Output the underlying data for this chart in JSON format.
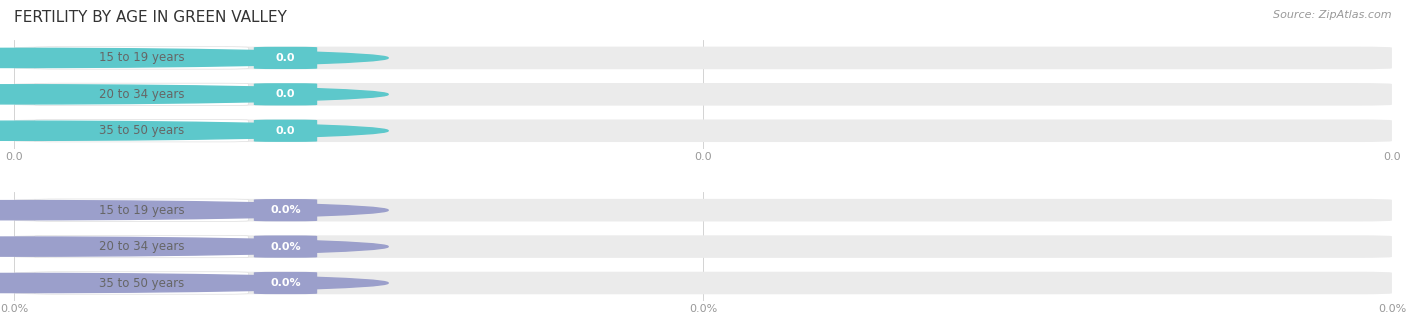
{
  "title": "FERTILITY BY AGE IN GREEN VALLEY",
  "source": "Source: ZipAtlas.com",
  "top_bars": {
    "categories": [
      "15 to 19 years",
      "20 to 34 years",
      "35 to 50 years"
    ],
    "values": [
      0.0,
      0.0,
      0.0
    ],
    "bar_color": "#5dc8cb",
    "value_format": "top",
    "tick_labels": [
      "0.0",
      "0.0",
      "0.0"
    ]
  },
  "bottom_bars": {
    "categories": [
      "15 to 19 years",
      "20 to 34 years",
      "35 to 50 years"
    ],
    "values": [
      0.0,
      0.0,
      0.0
    ],
    "bar_color": "#9b9fcb",
    "value_format": "bottom",
    "tick_labels": [
      "0.0%",
      "0.0%",
      "0.0%"
    ]
  },
  "bar_bg_color": "#ebebeb",
  "white_label_color": "#ffffff",
  "label_text_color": "#666666",
  "tick_color": "#999999",
  "grid_color": "#cccccc",
  "title_fontsize": 11,
  "label_fontsize": 8.5,
  "value_fontsize": 8,
  "tick_fontsize": 8,
  "source_fontsize": 8,
  "bar_height": 0.62,
  "fig_bg": "#ffffff"
}
